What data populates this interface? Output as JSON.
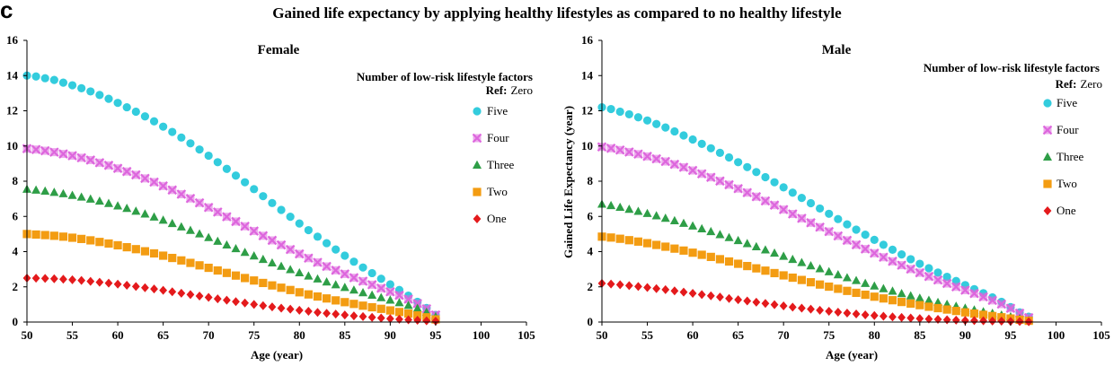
{
  "figure": {
    "panel_letter": "c",
    "title": "Gained life expectancy by applying healthy lifestyles as compared to no healthy lifestyle"
  },
  "colors": {
    "Five": "#33CCDD",
    "Four": "#DD66DD",
    "Three": "#2E9E47",
    "Two": "#F39C12",
    "One": "#E41A1C"
  },
  "chart_data": [
    {
      "type": "scatter",
      "title": "Female",
      "xlabel": "Age (year)",
      "ylabel": "",
      "xlim": [
        50,
        105
      ],
      "ylim": [
        0,
        16
      ],
      "xticks": [
        50,
        55,
        60,
        65,
        70,
        75,
        80,
        85,
        90,
        95,
        100,
        105
      ],
      "yticks": [
        0,
        2,
        4,
        6,
        8,
        10,
        12,
        14,
        16
      ],
      "grid": false,
      "legend_title": "Number  of low-risk  lifestyle factors",
      "legend_ref_label": "Ref:",
      "legend_ref_value": "Zero",
      "legend_position": "top-right",
      "age_start": 50,
      "age_step": 1,
      "series": [
        {
          "name": "Five",
          "marker": "circle",
          "values": [
            14.0,
            13.95,
            13.85,
            13.75,
            13.6,
            13.45,
            13.28,
            13.1,
            12.9,
            12.68,
            12.45,
            12.2,
            11.95,
            11.68,
            11.4,
            11.1,
            10.8,
            10.48,
            10.15,
            9.8,
            9.45,
            9.08,
            8.7,
            8.32,
            7.94,
            7.55,
            7.15,
            6.76,
            6.37,
            5.98,
            5.6,
            5.22,
            4.85,
            4.48,
            4.12,
            3.77,
            3.43,
            3.1,
            2.78,
            2.46,
            2.14,
            1.82,
            1.5,
            1.15,
            0.8,
            0.4
          ]
        },
        {
          "name": "Four",
          "marker": "x-square",
          "values": [
            9.85,
            9.8,
            9.73,
            9.65,
            9.55,
            9.45,
            9.33,
            9.2,
            9.05,
            8.9,
            8.73,
            8.55,
            8.36,
            8.16,
            7.95,
            7.73,
            7.5,
            7.26,
            7.02,
            6.77,
            6.51,
            6.25,
            5.98,
            5.71,
            5.44,
            5.17,
            4.9,
            4.64,
            4.38,
            4.12,
            3.87,
            3.63,
            3.39,
            3.16,
            2.94,
            2.73,
            2.52,
            2.32,
            2.12,
            1.92,
            1.72,
            1.52,
            1.3,
            1.05,
            0.75,
            0.4
          ]
        },
        {
          "name": "Three",
          "marker": "triangle",
          "values": [
            7.55,
            7.5,
            7.44,
            7.37,
            7.29,
            7.2,
            7.1,
            6.99,
            6.87,
            6.74,
            6.6,
            6.46,
            6.3,
            6.14,
            5.97,
            5.79,
            5.6,
            5.41,
            5.21,
            5.01,
            4.8,
            4.59,
            4.38,
            4.17,
            3.96,
            3.76,
            3.56,
            3.36,
            3.17,
            2.98,
            2.8,
            2.62,
            2.45,
            2.28,
            2.12,
            1.97,
            1.82,
            1.67,
            1.53,
            1.39,
            1.25,
            1.1,
            0.95,
            0.78,
            0.56,
            0.3
          ]
        },
        {
          "name": "Two",
          "marker": "square",
          "values": [
            5.0,
            4.97,
            4.94,
            4.9,
            4.85,
            4.79,
            4.72,
            4.64,
            4.55,
            4.46,
            4.36,
            4.25,
            4.14,
            4.02,
            3.9,
            3.77,
            3.64,
            3.5,
            3.36,
            3.22,
            3.08,
            2.93,
            2.79,
            2.64,
            2.5,
            2.36,
            2.22,
            2.08,
            1.95,
            1.82,
            1.69,
            1.57,
            1.45,
            1.34,
            1.23,
            1.13,
            1.03,
            0.93,
            0.84,
            0.75,
            0.66,
            0.57,
            0.48,
            0.38,
            0.27,
            0.15
          ]
        },
        {
          "name": "One",
          "marker": "diamond",
          "values": [
            2.5,
            2.49,
            2.48,
            2.46,
            2.43,
            2.4,
            2.36,
            2.31,
            2.26,
            2.21,
            2.15,
            2.09,
            2.02,
            1.95,
            1.88,
            1.8,
            1.72,
            1.64,
            1.56,
            1.48,
            1.4,
            1.32,
            1.24,
            1.16,
            1.08,
            1.0,
            0.93,
            0.86,
            0.79,
            0.73,
            0.67,
            0.61,
            0.55,
            0.5,
            0.45,
            0.4,
            0.35,
            0.31,
            0.27,
            0.23,
            0.19,
            0.16,
            0.13,
            0.1,
            0.07,
            0.05
          ]
        }
      ]
    },
    {
      "type": "scatter",
      "title": "Male",
      "xlabel": "Age (year)",
      "ylabel": "Gained Life Expectancy (year)",
      "xlim": [
        50,
        105
      ],
      "ylim": [
        0,
        16
      ],
      "xticks": [
        50,
        55,
        60,
        65,
        70,
        75,
        80,
        85,
        90,
        95,
        100,
        105
      ],
      "yticks": [
        0,
        2,
        4,
        6,
        8,
        10,
        12,
        14,
        16
      ],
      "grid": false,
      "legend_title": "Number  of low-risk  lifestyle factors",
      "legend_ref_label": "Ref:",
      "legend_ref_value": "Zero",
      "legend_position": "top-right",
      "age_start": 50,
      "age_step": 1,
      "series": [
        {
          "name": "Five",
          "marker": "circle",
          "values": [
            12.2,
            12.1,
            11.95,
            11.8,
            11.63,
            11.45,
            11.25,
            11.05,
            10.83,
            10.6,
            10.37,
            10.12,
            9.87,
            9.61,
            9.35,
            9.08,
            8.8,
            8.52,
            8.23,
            7.94,
            7.65,
            7.35,
            7.05,
            6.75,
            6.45,
            6.15,
            5.85,
            5.55,
            5.25,
            4.96,
            4.67,
            4.39,
            4.11,
            3.84,
            3.57,
            3.31,
            3.06,
            2.81,
            2.57,
            2.33,
            2.1,
            1.87,
            1.64,
            1.4,
            1.15,
            0.85,
            0.55,
            0.3
          ]
        },
        {
          "name": "Four",
          "marker": "x-square",
          "values": [
            9.95,
            9.87,
            9.77,
            9.66,
            9.54,
            9.41,
            9.27,
            9.12,
            8.96,
            8.79,
            8.61,
            8.42,
            8.22,
            8.01,
            7.8,
            7.58,
            7.35,
            7.12,
            6.88,
            6.64,
            6.39,
            6.14,
            5.89,
            5.64,
            5.39,
            5.14,
            4.89,
            4.64,
            4.39,
            4.15,
            3.91,
            3.68,
            3.45,
            3.23,
            3.01,
            2.8,
            2.59,
            2.39,
            2.19,
            2.0,
            1.81,
            1.62,
            1.43,
            1.23,
            1.02,
            0.78,
            0.5,
            0.25
          ]
        },
        {
          "name": "Three",
          "marker": "triangle",
          "values": [
            6.7,
            6.62,
            6.52,
            6.41,
            6.29,
            6.17,
            6.04,
            5.9,
            5.76,
            5.61,
            5.46,
            5.3,
            5.14,
            4.97,
            4.8,
            4.63,
            4.46,
            4.28,
            4.1,
            3.92,
            3.74,
            3.56,
            3.38,
            3.2,
            3.03,
            2.86,
            2.69,
            2.52,
            2.36,
            2.2,
            2.05,
            1.9,
            1.76,
            1.62,
            1.49,
            1.36,
            1.24,
            1.12,
            1.01,
            0.9,
            0.79,
            0.69,
            0.59,
            0.5,
            0.4,
            0.3,
            0.2,
            0.1
          ]
        },
        {
          "name": "Two",
          "marker": "square",
          "values": [
            4.85,
            4.8,
            4.73,
            4.65,
            4.57,
            4.48,
            4.38,
            4.28,
            4.17,
            4.06,
            3.94,
            3.82,
            3.7,
            3.57,
            3.44,
            3.31,
            3.18,
            3.05,
            2.92,
            2.78,
            2.65,
            2.52,
            2.39,
            2.26,
            2.13,
            2.01,
            1.89,
            1.77,
            1.66,
            1.55,
            1.44,
            1.34,
            1.24,
            1.14,
            1.05,
            0.96,
            0.87,
            0.79,
            0.71,
            0.63,
            0.55,
            0.48,
            0.41,
            0.34,
            0.27,
            0.2,
            0.13,
            0.07
          ]
        },
        {
          "name": "One",
          "marker": "diamond",
          "values": [
            2.2,
            2.16,
            2.12,
            2.07,
            2.02,
            1.96,
            1.9,
            1.84,
            1.77,
            1.7,
            1.63,
            1.56,
            1.49,
            1.42,
            1.34,
            1.27,
            1.2,
            1.13,
            1.06,
            0.99,
            0.92,
            0.85,
            0.79,
            0.73,
            0.67,
            0.61,
            0.56,
            0.51,
            0.46,
            0.41,
            0.37,
            0.33,
            0.29,
            0.26,
            0.23,
            0.2,
            0.17,
            0.15,
            0.13,
            0.11,
            0.09,
            0.08,
            0.07,
            0.06,
            0.05,
            0.04,
            0.03,
            0.02
          ]
        }
      ]
    }
  ]
}
